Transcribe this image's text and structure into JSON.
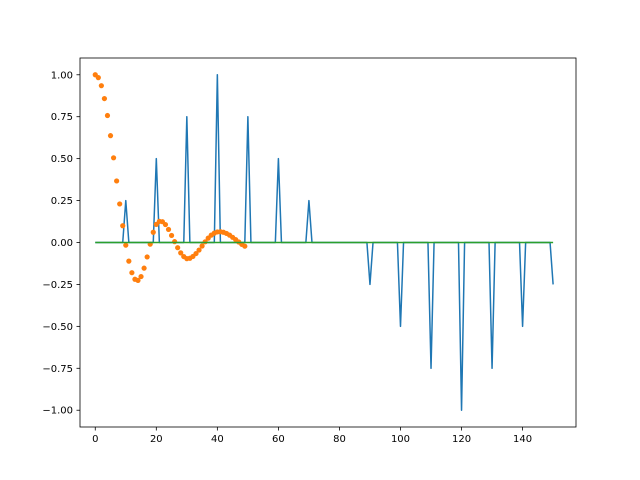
{
  "chart_data": {
    "type": "line",
    "title": "",
    "xlabel": "",
    "ylabel": "",
    "xlim": [
      -5,
      157.5
    ],
    "ylim": [
      -1.1,
      1.1
    ],
    "grid": false,
    "legend": "none",
    "x_ticks": [
      0,
      20,
      40,
      60,
      80,
      100,
      120,
      140
    ],
    "x_tick_labels": [
      "0",
      "20",
      "40",
      "60",
      "80",
      "100",
      "120",
      "140"
    ],
    "y_ticks": [
      1.0,
      0.75,
      0.5,
      0.25,
      0.0,
      -0.25,
      -0.5,
      -0.75,
      -1.0
    ],
    "y_tick_labels": [
      "1.00",
      "0.75",
      "0.50",
      "0.25",
      "0.00",
      "−0.25",
      "−0.50",
      "−0.75",
      "−1.00"
    ],
    "series": [
      {
        "style": "line",
        "color": "#1f77b4",
        "x": [
          0,
          9,
          10,
          11,
          19,
          20,
          21,
          29,
          30,
          31,
          39,
          40,
          41,
          49,
          50,
          51,
          59,
          60,
          61,
          69,
          70,
          71,
          89,
          90,
          91,
          99,
          100,
          101,
          109,
          110,
          111,
          119,
          120,
          121,
          129,
          130,
          131,
          139,
          140,
          141,
          149,
          150
        ],
        "y": [
          0,
          0,
          0.25,
          0,
          0,
          0.5,
          0,
          0,
          0.75,
          0,
          0,
          1.0,
          0,
          0,
          0.75,
          0,
          0,
          0.5,
          0,
          0,
          0.25,
          0,
          0,
          -0.25,
          0,
          0,
          -0.5,
          0,
          0,
          -0.75,
          0,
          0,
          -1.0,
          0,
          0,
          -0.75,
          0,
          0,
          -0.5,
          0,
          0,
          -0.25
        ]
      },
      {
        "style": "scatter",
        "color": "#ff7f0e",
        "x": [
          0,
          1,
          2,
          3,
          4,
          5,
          6,
          7,
          8,
          9,
          10,
          11,
          12,
          13,
          14,
          15,
          16,
          17,
          18,
          19,
          20,
          21,
          22,
          23,
          24,
          25,
          26,
          27,
          28,
          29,
          30,
          31,
          32,
          33,
          34,
          35,
          36,
          37,
          38,
          39,
          40,
          41,
          42,
          43,
          44,
          45,
          46,
          47,
          48,
          49
        ],
        "y": [
          1.0,
          0.983,
          0.935,
          0.858,
          0.757,
          0.637,
          0.505,
          0.367,
          0.23,
          0.1,
          -0.016,
          -0.111,
          -0.18,
          -0.219,
          -0.226,
          -0.203,
          -0.153,
          -0.086,
          -0.01,
          0.061,
          0.108,
          0.126,
          0.124,
          0.107,
          0.078,
          0.042,
          0.005,
          -0.031,
          -0.062,
          -0.084,
          -0.096,
          -0.094,
          -0.083,
          -0.066,
          -0.045,
          -0.021,
          0.004,
          0.026,
          0.044,
          0.056,
          0.063,
          0.064,
          0.061,
          0.054,
          0.044,
          0.031,
          0.017,
          0.003,
          -0.011,
          -0.022
        ]
      },
      {
        "style": "line",
        "color": "#2ca02c",
        "x": [
          0,
          150
        ],
        "y": [
          0,
          0
        ]
      }
    ]
  }
}
